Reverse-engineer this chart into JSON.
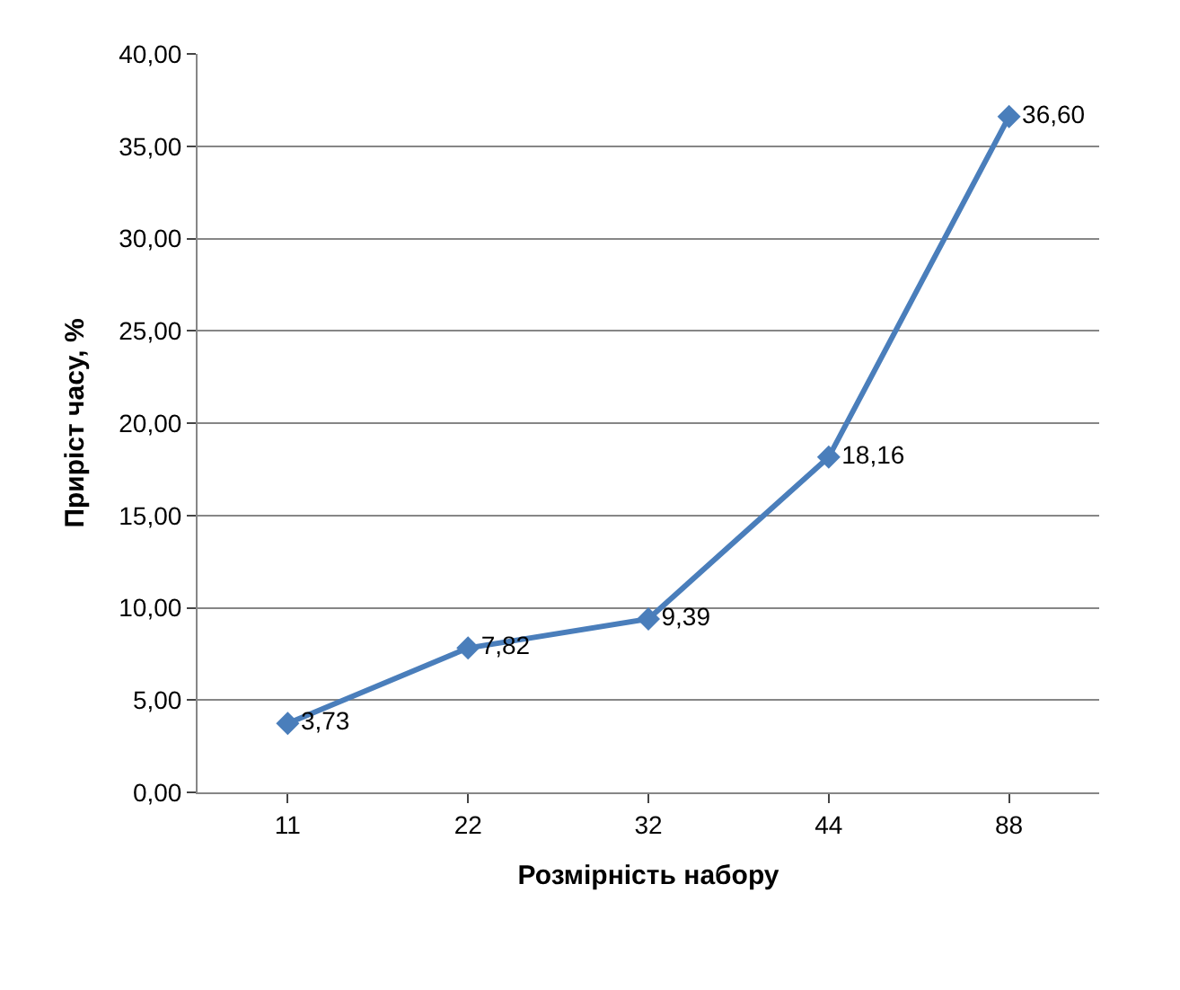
{
  "chart_data": {
    "type": "line",
    "xlabel": "Розмірність набору",
    "ylabel": "Приріст часу, %",
    "categories": [
      "11",
      "22",
      "32",
      "44",
      "88"
    ],
    "series": [
      {
        "color": "#4a7ebb",
        "values": [
          3.73,
          7.82,
          9.39,
          18.16,
          36.6
        ],
        "value_labels": [
          "3,73",
          "7,82",
          "9,39",
          "18,16",
          "36,60"
        ]
      }
    ],
    "ylim": [
      0,
      40
    ],
    "yticks": [
      {
        "value": 0,
        "label": "0,00"
      },
      {
        "value": 5,
        "label": "5,00"
      },
      {
        "value": 10,
        "label": "10,00"
      },
      {
        "value": 15,
        "label": "15,00"
      },
      {
        "value": 20,
        "label": "20,00"
      },
      {
        "value": 25,
        "label": "25,00"
      },
      {
        "value": 30,
        "label": "30,00"
      },
      {
        "value": 35,
        "label": "35,00"
      },
      {
        "value": 40,
        "label": "40,00"
      }
    ],
    "grid": "y",
    "marker": "diamond",
    "line_style": "solid",
    "legend": false
  }
}
